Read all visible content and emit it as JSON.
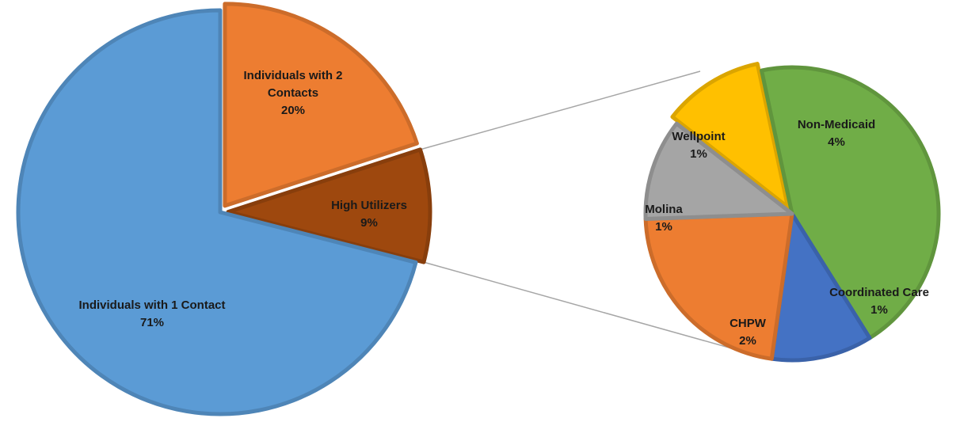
{
  "chart_data": {
    "type": "pie",
    "subtype": "bar-of-pie",
    "main_pie": {
      "slices": [
        {
          "name": "Individuals with 1 Contact",
          "value": 71,
          "label": "71%",
          "color": "#5b9bd5"
        },
        {
          "name": "Individuals with 2 Contacts",
          "value": 20,
          "label": "20%",
          "color": "#ed7d31"
        },
        {
          "name": "High Utilizers",
          "value": 9,
          "label": "9%",
          "color": "#9e480e"
        }
      ]
    },
    "secondary_pie": {
      "breakdown_of": "High Utilizers",
      "slices": [
        {
          "name": "Non-Medicaid",
          "value": 4,
          "label": "4%",
          "color": "#70ad47"
        },
        {
          "name": "Coordinated Care",
          "value": 1,
          "label": "1%",
          "color": "#4472c4"
        },
        {
          "name": "CHPW",
          "value": 2,
          "label": "2%",
          "color": "#ed7d31"
        },
        {
          "name": "Molina",
          "value": 1,
          "label": "1%",
          "color": "#a5a5a5"
        },
        {
          "name": "Wellpoint",
          "value": 1,
          "label": "1%",
          "color": "#ffc000"
        }
      ]
    },
    "legend": "none"
  }
}
